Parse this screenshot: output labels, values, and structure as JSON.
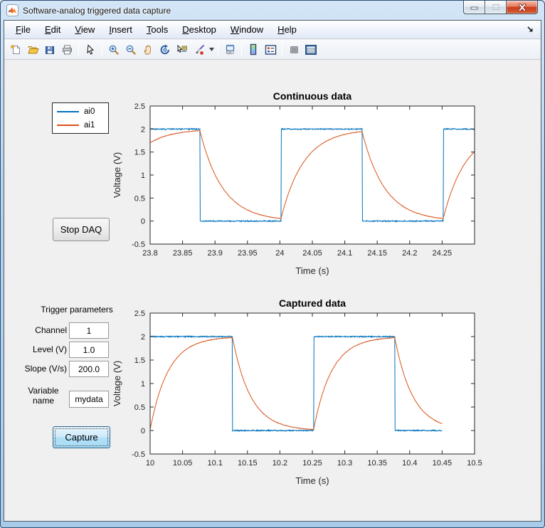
{
  "window": {
    "title": "Software-analog triggered data capture",
    "controls": [
      "minimize",
      "maximize",
      "close"
    ]
  },
  "menubar": {
    "items": [
      {
        "label": "File"
      },
      {
        "label": "Edit"
      },
      {
        "label": "View"
      },
      {
        "label": "Insert"
      },
      {
        "label": "Tools"
      },
      {
        "label": "Desktop"
      },
      {
        "label": "Window"
      },
      {
        "label": "Help"
      }
    ],
    "dock_icon": "dock-arrow-icon"
  },
  "toolbar": {
    "icons": [
      "new-document",
      "open-file",
      "save",
      "print",
      "edit-plot-arrow",
      "zoom-in",
      "zoom-out",
      "pan-hand",
      "rotate-3d",
      "data-cursor",
      "brush-data",
      "link-plots",
      "insert-colorbar",
      "insert-legend",
      "hide-plot-tools",
      "show-plot-tools"
    ]
  },
  "panel": {
    "legend": {
      "entries": [
        {
          "label": "ai0",
          "color": "#0072BD"
        },
        {
          "label": "ai1",
          "color": "#D95319"
        }
      ]
    },
    "stop_daq_label": "Stop DAQ",
    "trigger": {
      "heading": "Trigger parameters",
      "fields": [
        {
          "label": "Channel",
          "value": "1"
        },
        {
          "label": "Level (V)",
          "value": "1.0"
        },
        {
          "label": "Slope (V/s)",
          "value": "200.0"
        },
        {
          "label": "Variable name",
          "value": "mydata"
        }
      ]
    },
    "capture_label": "Capture"
  },
  "chart_data": [
    {
      "type": "line",
      "title": "Continuous data",
      "xlabel": "Time (s)",
      "ylabel": "Voltage (V)",
      "xlim": [
        23.8,
        24.3
      ],
      "ylim": [
        -0.5,
        2.5
      ],
      "xticks": [
        23.8,
        23.85,
        23.9,
        23.95,
        24,
        24.05,
        24.1,
        24.15,
        24.2,
        24.25
      ],
      "xtick_labels": [
        "23.8",
        "23.85",
        "23.9",
        "23.95",
        "24",
        "24.05",
        "24.1",
        "24.15",
        "24.2",
        "24.25"
      ],
      "yticks": [
        -0.5,
        0,
        0.5,
        1,
        1.5,
        2,
        2.5
      ],
      "ytick_labels": [
        "-0.5",
        "0",
        "0.5",
        "1",
        "1.5",
        "2",
        "2.5"
      ],
      "grid": false,
      "box": true,
      "legend_position": "outside-left",
      "series": [
        {
          "name": "ai0",
          "color": "#0072BD",
          "kind": "square",
          "x_start": 23.8,
          "x_end": 24.3,
          "initial_level": 2,
          "high": 2,
          "low": 0,
          "toggle_times": [
            23.877,
            24.002,
            24.127,
            24.252
          ],
          "noise": 0.012
        },
        {
          "name": "ai1",
          "color": "#D95319",
          "kind": "exponential",
          "x_start": 23.8,
          "x_end": 24.3,
          "start_value": 1.7,
          "tau": 0.035,
          "segments": [
            {
              "until": 23.877,
              "target": 2
            },
            {
              "until": 24.002,
              "target": 0
            },
            {
              "until": 24.127,
              "target": 2
            },
            {
              "until": 24.252,
              "target": 0
            },
            {
              "until": 24.3,
              "target": 2
            }
          ],
          "noise": 0.005
        }
      ]
    },
    {
      "type": "line",
      "title": "Captured data",
      "xlabel": "Time (s)",
      "ylabel": "Voltage (V)",
      "xlim": [
        10,
        10.5
      ],
      "ylim": [
        -0.5,
        2.5
      ],
      "xticks": [
        10,
        10.05,
        10.1,
        10.15,
        10.2,
        10.25,
        10.3,
        10.35,
        10.4,
        10.45,
        10.5
      ],
      "xtick_labels": [
        "10",
        "10.05",
        "10.1",
        "10.15",
        "10.2",
        "10.25",
        "10.3",
        "10.35",
        "10.4",
        "10.45",
        "10.5"
      ],
      "yticks": [
        -0.5,
        0,
        0.5,
        1,
        1.5,
        2,
        2.5
      ],
      "ytick_labels": [
        "-0.5",
        "0",
        "0.5",
        "1",
        "1.5",
        "2",
        "2.5"
      ],
      "grid": false,
      "box": true,
      "series": [
        {
          "name": "ai0",
          "color": "#0072BD",
          "kind": "square",
          "x_start": 10,
          "x_end": 10.45,
          "initial_level": 2,
          "high": 2,
          "low": 0,
          "toggle_times": [
            10.127,
            10.252,
            10.377
          ],
          "noise": 0.012
        },
        {
          "name": "ai1",
          "color": "#D95319",
          "kind": "exponential",
          "x_start": 10,
          "x_end": 10.45,
          "start_value": 0.02,
          "tau": 0.028,
          "segments": [
            {
              "until": 10.127,
              "target": 2
            },
            {
              "until": 10.252,
              "target": 0
            },
            {
              "until": 10.377,
              "target": 2
            },
            {
              "until": 10.45,
              "target": 0
            }
          ],
          "noise": 0.005
        }
      ]
    }
  ]
}
